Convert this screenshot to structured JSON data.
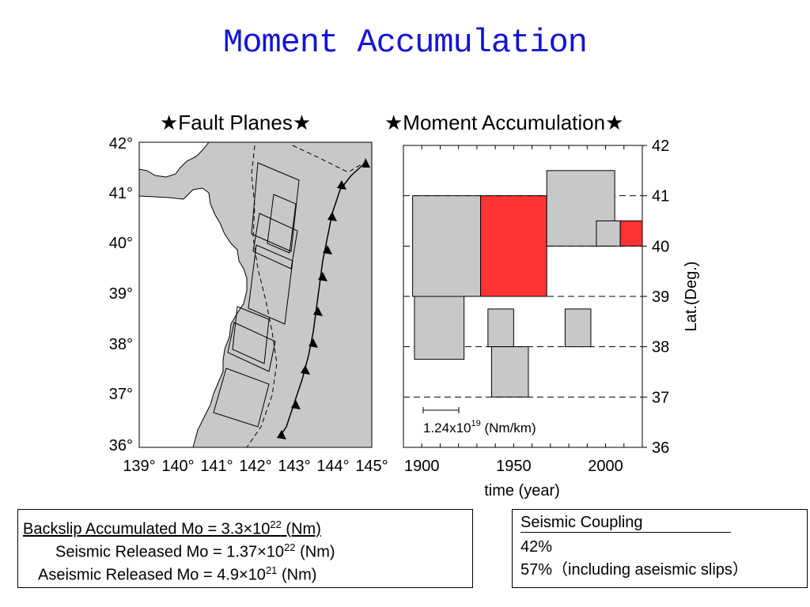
{
  "title": "Moment Accumulation",
  "colors": {
    "title": "#1414d4",
    "land": "#c8c8c8",
    "released": "#ff3333",
    "accumulated": "#c8c8c8"
  },
  "panels": {
    "fault_title": "★Fault Planes★",
    "moment_title": "★Moment Accumulation★"
  },
  "chart_data": [
    {
      "type": "map",
      "title": "★Fault Planes★",
      "x_ticks": [
        "139°",
        "140°",
        "141°",
        "142°",
        "143°",
        "144°",
        "145°"
      ],
      "y_ticks": [
        "42°",
        "41°",
        "40°",
        "39°",
        "38°",
        "37°",
        "36°"
      ],
      "xlim": [
        139,
        145
      ],
      "ylim": [
        36,
        42
      ]
    },
    {
      "type": "bar",
      "title": "★Moment Accumulation★",
      "xlabel": "time (year)",
      "ylabel": "Lat.(Deg.)",
      "xlim": [
        1890,
        2020
      ],
      "ylim": [
        36,
        42
      ],
      "x_ticks": [
        "1900",
        "1950",
        "2000"
      ],
      "y_ticks": [
        "42",
        "41",
        "40",
        "39",
        "38",
        "37",
        "36"
      ],
      "scale_label": "1.24x10",
      "scale_exp": "19",
      "scale_unit": " (Nm/km)",
      "blocks": [
        {
          "t0": 1895,
          "t1": 1932,
          "lat0": 39,
          "lat1": 41,
          "released": false
        },
        {
          "t0": 1932,
          "t1": 1968,
          "lat0": 39,
          "lat1": 41,
          "released": true
        },
        {
          "t0": 1968,
          "t1": 2005,
          "lat0": 40,
          "lat1": 41.5,
          "released": false
        },
        {
          "t0": 1995,
          "t1": 2008,
          "lat0": 40,
          "lat1": 40.5,
          "released": false
        },
        {
          "t0": 2008,
          "t1": 2020,
          "lat0": 40,
          "lat1": 40.5,
          "released": true
        },
        {
          "t0": 1896,
          "t1": 1923,
          "lat0": 37.75,
          "lat1": 39,
          "released": false
        },
        {
          "t0": 1936,
          "t1": 1950,
          "lat0": 38,
          "lat1": 38.75,
          "released": false
        },
        {
          "t0": 1938,
          "t1": 1958,
          "lat0": 37,
          "lat1": 38,
          "released": false
        },
        {
          "t0": 1978,
          "t1": 1992,
          "lat0": 38,
          "lat1": 38.75,
          "released": false
        }
      ]
    }
  ],
  "summary": {
    "l1_text": "Backslip Accumulated Mo  = 3.3×10",
    "l1_exp": "22",
    "l1_unit": " (Nm)",
    "l2_text": "Seismic Released Mo = 1.37×10",
    "l2_exp": "22",
    "l2_unit": " (Nm)",
    "l3_text": "Aseismic Released  Mo = 4.9×10",
    "l3_exp": "21",
    "l3_unit": " (Nm)"
  },
  "coupling": {
    "heading": "Seismic Coupling",
    "value": "42%",
    "value2": "57%（including aseismic slips）"
  }
}
